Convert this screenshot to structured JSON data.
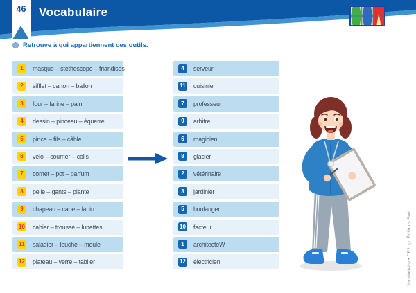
{
  "page": {
    "number": "46",
    "title": "Vocabulaire",
    "instruction": "Retrouve à qui appartiennent ces outils.",
    "credit": "Vocabulaire • CE2, © Éditions Sed."
  },
  "icons": {
    "logo": "editions-sed-tangram-logo",
    "bullet": "instruction-bullet",
    "arrow": "arrow-right",
    "illustration": "woman-referee-with-clipboard"
  },
  "colors": {
    "banner": "#0d57a7",
    "banner_swoosh": "#3e93d0",
    "row_dark": "#bcdcf0",
    "row_light": "#e7f1fa",
    "tool_badge_bg": "#ffd400",
    "tool_badge_text": "#e2372d",
    "profession_badge_bg": "#1566b0",
    "profession_badge_text": "#ffffff",
    "arrow": "#1257a8",
    "instruction_text": "#1a6ab5",
    "list_text": "#3f4a58",
    "logo_green": "#3fae49",
    "logo_blue": "#2d6cbd",
    "logo_red": "#e0312a",
    "logo_yellow": "#f7e9a8"
  },
  "exercise": {
    "tools": [
      {
        "num": "1",
        "label": "masque – stéthoscope – friandises"
      },
      {
        "num": "2",
        "label": "sifflet – carton – ballon"
      },
      {
        "num": "3",
        "label": "four – farine – pain"
      },
      {
        "num": "4",
        "label": "dessin – pinceau – équerre"
      },
      {
        "num": "5",
        "label": "pince – fils – câble"
      },
      {
        "num": "6",
        "label": "vélo – courrier – colis"
      },
      {
        "num": "7",
        "label": "cornet – pot – parfum"
      },
      {
        "num": "8",
        "label": "pelle – gants – plante"
      },
      {
        "num": "9",
        "label": "chapeau – cape – lapin"
      },
      {
        "num": "10",
        "label": "cahier – trousse – lunettes"
      },
      {
        "num": "11",
        "label": "saladier – louche – moule"
      },
      {
        "num": "12",
        "label": "plateau – verre – tablier"
      }
    ],
    "professions": [
      {
        "num": "4",
        "label": "serveur"
      },
      {
        "num": "11",
        "label": "cuisinier"
      },
      {
        "num": "7",
        "label": "professeur"
      },
      {
        "num": "9",
        "label": "arbitre"
      },
      {
        "num": "6",
        "label": "magicien"
      },
      {
        "num": "8",
        "label": "glacier"
      },
      {
        "num": "2",
        "label": "vétérinaire"
      },
      {
        "num": "3",
        "label": "jardinier"
      },
      {
        "num": "5",
        "label": "boulanger"
      },
      {
        "num": "10",
        "label": "facteur"
      },
      {
        "num": "1",
        "label": "architecteW"
      },
      {
        "num": "12",
        "label": "électricien"
      }
    ]
  }
}
